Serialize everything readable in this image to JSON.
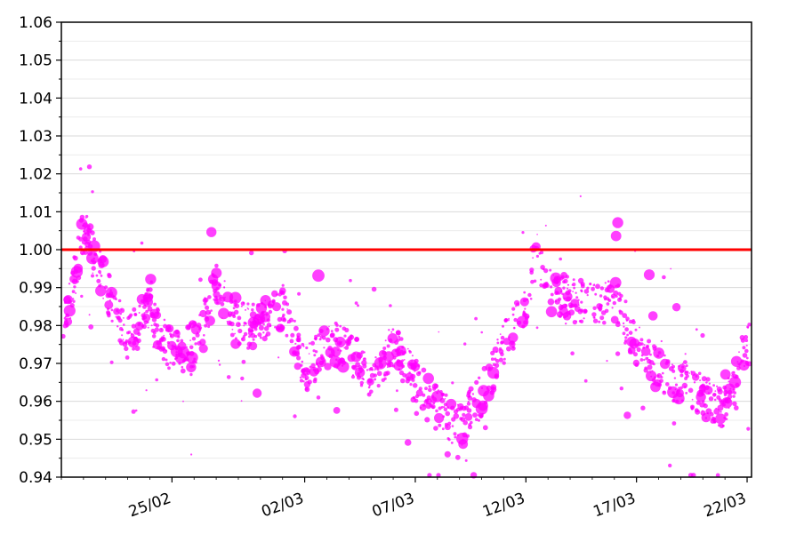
{
  "chart_data": {
    "type": "scatter",
    "title": "",
    "xlabel": "",
    "ylabel": "",
    "ylim": [
      0.94,
      1.06
    ],
    "xlim": [
      "2024-02-20",
      "2024-03-22"
    ],
    "y_ticks": [
      "0.94",
      "0.95",
      "0.96",
      "0.97",
      "0.98",
      "0.99",
      "1.00",
      "1.01",
      "1.02",
      "1.03",
      "1.04",
      "1.05",
      "1.06"
    ],
    "x_ticks": [
      {
        "date": "2024-02-25",
        "label": "25/02"
      },
      {
        "date": "2024-03-02",
        "label": "02/03"
      },
      {
        "date": "2024-03-07",
        "label": "07/03"
      },
      {
        "date": "2024-03-12",
        "label": "12/03"
      },
      {
        "date": "2024-03-17",
        "label": "17/03"
      },
      {
        "date": "2024-03-22",
        "label": "22/03"
      }
    ],
    "grid": "horizontal, minor ticks every 0.005",
    "reference_line": {
      "y": 1.0,
      "color": "#ff0000"
    },
    "point_color": "#ff00ff",
    "series": [
      {
        "trend": [
          {
            "date": "2024-02-20",
            "y": 0.975
          },
          {
            "date": "2024-02-21",
            "y": 1.005
          },
          {
            "date": "2024-02-22",
            "y": 0.99
          },
          {
            "date": "2024-02-23",
            "y": 0.976
          },
          {
            "date": "2024-02-24",
            "y": 0.985
          },
          {
            "date": "2024-02-25",
            "y": 0.972
          },
          {
            "date": "2024-02-26",
            "y": 0.975
          },
          {
            "date": "2024-02-27",
            "y": 0.99
          },
          {
            "date": "2024-02-28",
            "y": 0.98
          },
          {
            "date": "2024-02-29",
            "y": 0.98
          },
          {
            "date": "2024-03-01",
            "y": 0.985
          },
          {
            "date": "2024-03-02",
            "y": 0.968
          },
          {
            "date": "2024-03-03",
            "y": 0.975
          },
          {
            "date": "2024-03-04",
            "y": 0.974
          },
          {
            "date": "2024-03-05",
            "y": 0.965
          },
          {
            "date": "2024-03-06",
            "y": 0.975
          },
          {
            "date": "2024-03-07",
            "y": 0.965
          },
          {
            "date": "2024-03-08",
            "y": 0.958
          },
          {
            "date": "2024-03-09",
            "y": 0.953
          },
          {
            "date": "2024-03-10",
            "y": 0.962
          },
          {
            "date": "2024-03-11",
            "y": 0.975
          },
          {
            "date": "2024-03-12",
            "y": 0.985
          },
          {
            "date": "2024-03-12T12:00",
            "y": 1.0
          },
          {
            "date": "2024-03-13",
            "y": 0.99
          },
          {
            "date": "2024-03-14",
            "y": 0.987
          },
          {
            "date": "2024-03-15",
            "y": 0.985
          },
          {
            "date": "2024-03-16",
            "y": 0.987
          },
          {
            "date": "2024-03-17",
            "y": 0.975
          },
          {
            "date": "2024-03-18",
            "y": 0.968
          },
          {
            "date": "2024-03-19",
            "y": 0.965
          },
          {
            "date": "2024-03-20",
            "y": 0.962
          },
          {
            "date": "2024-03-21",
            "y": 0.958
          },
          {
            "date": "2024-03-22",
            "y": 0.975
          }
        ]
      }
    ]
  }
}
